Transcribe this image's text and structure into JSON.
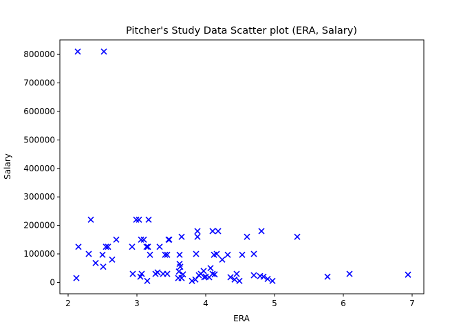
{
  "chart_data": {
    "type": "scatter",
    "title": "Pitcher's Study Data Scatter plot (ERA, Salary)",
    "xlabel": "ERA",
    "ylabel": "Salary",
    "xlim": [
      1.88,
      7.17
    ],
    "ylim": [
      -40000,
      851000
    ],
    "xticks": [
      2,
      3,
      4,
      5,
      6,
      7
    ],
    "xtick_labels": [
      "2",
      "3",
      "4",
      "5",
      "6",
      "7"
    ],
    "yticks": [
      0,
      100000,
      200000,
      300000,
      400000,
      500000,
      600000,
      700000,
      800000
    ],
    "ytick_labels": [
      "0",
      "100000",
      "200000",
      "300000",
      "400000",
      "500000",
      "600000",
      "700000",
      "800000"
    ],
    "grid": false,
    "marker": "x",
    "marker_color": "#0000ff",
    "points": [
      [
        2.14,
        810000
      ],
      [
        2.52,
        810000
      ],
      [
        2.12,
        15000
      ],
      [
        2.15,
        125000
      ],
      [
        2.3,
        100000
      ],
      [
        2.33,
        220000
      ],
      [
        2.4,
        68000
      ],
      [
        2.5,
        97000
      ],
      [
        2.51,
        55000
      ],
      [
        2.55,
        125000
      ],
      [
        2.58,
        125000
      ],
      [
        2.64,
        80000
      ],
      [
        2.7,
        150000
      ],
      [
        2.93,
        125000
      ],
      [
        2.94,
        30000
      ],
      [
        2.99,
        220000
      ],
      [
        3.03,
        220000
      ],
      [
        3.06,
        150000
      ],
      [
        3.05,
        20000
      ],
      [
        3.07,
        30000
      ],
      [
        3.1,
        150000
      ],
      [
        3.14,
        125000
      ],
      [
        3.16,
        125000
      ],
      [
        3.15,
        5000
      ],
      [
        3.17,
        220000
      ],
      [
        3.19,
        97000
      ],
      [
        3.27,
        30000
      ],
      [
        3.3,
        35000
      ],
      [
        3.33,
        125000
      ],
      [
        3.38,
        30000
      ],
      [
        3.41,
        97000
      ],
      [
        3.44,
        30000
      ],
      [
        3.44,
        97000
      ],
      [
        3.46,
        150000
      ],
      [
        3.47,
        150000
      ],
      [
        3.6,
        15000
      ],
      [
        3.61,
        38000
      ],
      [
        3.62,
        65000
      ],
      [
        3.63,
        55000
      ],
      [
        3.62,
        97000
      ],
      [
        3.65,
        15000
      ],
      [
        3.65,
        160000
      ],
      [
        3.67,
        28000
      ],
      [
        3.8,
        5000
      ],
      [
        3.85,
        10000
      ],
      [
        3.86,
        100000
      ],
      [
        3.88,
        160000
      ],
      [
        3.88,
        180000
      ],
      [
        3.9,
        25000
      ],
      [
        3.93,
        30000
      ],
      [
        3.97,
        40000
      ],
      [
        3.98,
        18000
      ],
      [
        4.0,
        20000
      ],
      [
        4.05,
        18000
      ],
      [
        4.07,
        50000
      ],
      [
        4.1,
        30000
      ],
      [
        4.1,
        180000
      ],
      [
        4.12,
        97000
      ],
      [
        4.13,
        28000
      ],
      [
        4.16,
        100000
      ],
      [
        4.18,
        180000
      ],
      [
        4.24,
        80000
      ],
      [
        4.32,
        97000
      ],
      [
        4.36,
        18000
      ],
      [
        4.42,
        10000
      ],
      [
        4.45,
        30000
      ],
      [
        4.49,
        5000
      ],
      [
        4.53,
        97000
      ],
      [
        4.6,
        160000
      ],
      [
        4.7,
        100000
      ],
      [
        4.7,
        25000
      ],
      [
        4.79,
        22000
      ],
      [
        4.81,
        180000
      ],
      [
        4.84,
        20000
      ],
      [
        4.9,
        12000
      ],
      [
        4.97,
        5000
      ],
      [
        5.33,
        160000
      ],
      [
        5.77,
        20000
      ],
      [
        6.09,
        30000
      ],
      [
        6.94,
        27000
      ]
    ]
  }
}
